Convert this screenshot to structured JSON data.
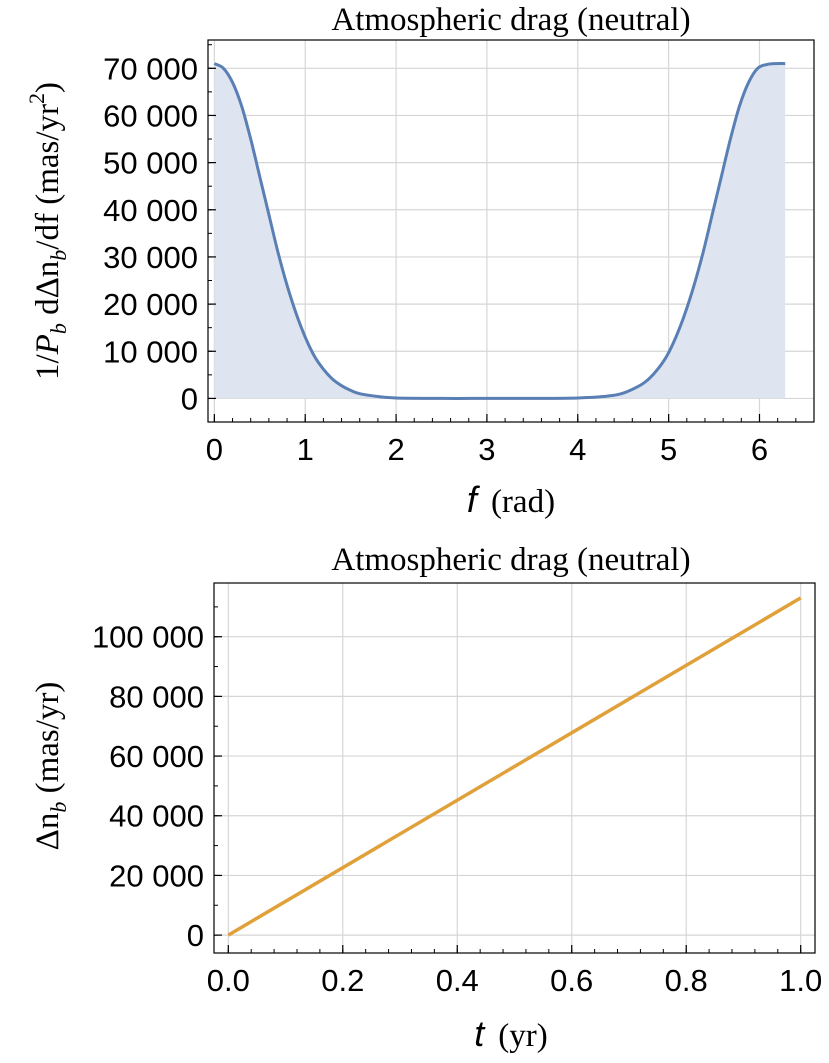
{
  "chart_data": [
    {
      "type": "area",
      "title": "Atmospheric drag (neutral)",
      "xlabel_var": "f",
      "xlabel_unit": "(rad)",
      "ylabel_parts": {
        "pre": "1/",
        "P": "P",
        "b1": "b",
        "mid": " dΔn",
        "b2": "b",
        "post": "/df (mas/yr",
        "exp": "2",
        "close": ")"
      },
      "xlim": [
        -0.07,
        6.6
      ],
      "ylim": [
        -5000,
        76000
      ],
      "xticks": [
        0,
        1,
        2,
        3,
        4,
        5,
        6
      ],
      "yticks": [
        0,
        10000,
        20000,
        30000,
        40000,
        50000,
        60000,
        70000
      ],
      "xtick_labels": [
        "0",
        "1",
        "2",
        "3",
        "4",
        "5",
        "6"
      ],
      "ytick_labels": [
        "0",
        "10 000",
        "20 000",
        "30 000",
        "40 000",
        "50 000",
        "60 000",
        "70 000"
      ],
      "grid": true,
      "line_color": "#5a7fb5",
      "fill_color": "#dfe5f0",
      "series": [
        {
          "x": [
            0,
            0.1,
            0.2,
            0.3,
            0.4,
            0.5,
            0.6,
            0.7,
            0.8,
            0.9,
            1.0,
            1.1,
            1.2,
            1.3,
            1.4,
            1.5,
            1.6,
            1.8,
            2.0,
            2.5,
            3.0,
            3.5,
            4.0,
            4.28,
            4.48,
            4.68,
            4.78,
            4.88,
            4.98,
            5.08,
            5.18,
            5.28,
            5.38,
            5.48,
            5.58,
            5.68,
            5.78,
            5.88,
            5.98,
            6.08,
            6.18,
            6.283
          ],
          "y": [
            71000,
            70000,
            67000,
            62000,
            55000,
            47000,
            39000,
            31000,
            24000,
            18000,
            13000,
            9000,
            6200,
            4100,
            2700,
            1700,
            1000,
            400,
            100,
            0,
            0,
            0,
            100,
            400,
            1000,
            2700,
            4100,
            6200,
            9000,
            13000,
            18000,
            24000,
            31000,
            39000,
            47000,
            55000,
            62000,
            67000,
            70000,
            70800,
            71000,
            71000
          ]
        }
      ]
    },
    {
      "type": "line",
      "title": "Atmospheric drag (neutral)",
      "xlabel_var": "t",
      "xlabel_unit": "(yr)",
      "ylabel_parts": {
        "pre": "Δn",
        "b": "b",
        "post": " (mas/yr)"
      },
      "xlim": [
        -0.025,
        1.025
      ],
      "ylim": [
        -6000,
        118000
      ],
      "xticks": [
        0.0,
        0.2,
        0.4,
        0.6,
        0.8,
        1.0
      ],
      "yticks": [
        0,
        20000,
        40000,
        60000,
        80000,
        100000
      ],
      "xtick_labels": [
        "0.0",
        "0.2",
        "0.4",
        "0.6",
        "0.8",
        "1.0"
      ],
      "ytick_labels": [
        "0",
        "20 000",
        "40 000",
        "60 000",
        "80 000",
        "100 000"
      ],
      "grid": true,
      "line_color": "#e0a03a",
      "series": [
        {
          "x": [
            0.0,
            1.0
          ],
          "y": [
            0,
            113000
          ]
        }
      ]
    }
  ]
}
